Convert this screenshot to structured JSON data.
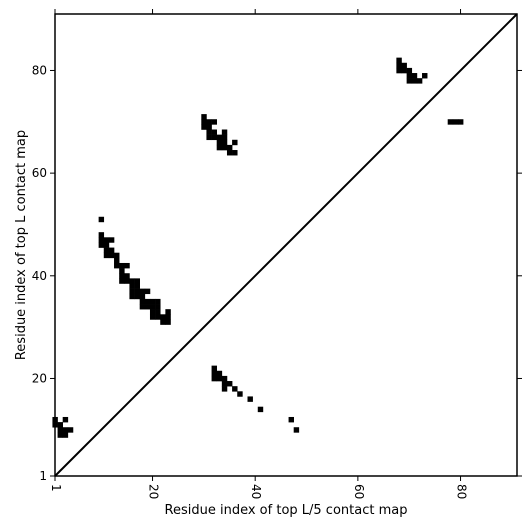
{
  "chart_data": {
    "type": "heatmap",
    "title": "",
    "xlabel": "Residue index of top L/5 contact map",
    "ylabel": "Residue index of top L contact map",
    "xlim": [
      1,
      91
    ],
    "ylim": [
      1,
      91
    ],
    "x_ticks": [
      1,
      20,
      40,
      60,
      80
    ],
    "y_ticks": [
      1,
      20,
      40,
      60,
      80
    ],
    "x_tick_labels": [
      "1",
      "20",
      "40",
      "60",
      "80"
    ],
    "y_tick_labels": [
      "1",
      "20",
      "40",
      "60",
      "80"
    ],
    "diagonal": true,
    "grid": false,
    "cell_color": "#000000",
    "upper_contacts": [
      [
        10,
        51
      ],
      [
        10,
        48
      ],
      [
        10,
        47
      ],
      [
        11,
        47
      ],
      [
        12,
        47
      ],
      [
        10,
        46
      ],
      [
        11,
        46
      ],
      [
        11,
        45
      ],
      [
        12,
        45
      ],
      [
        11,
        44
      ],
      [
        12,
        44
      ],
      [
        13,
        44
      ],
      [
        13,
        43
      ],
      [
        13,
        42
      ],
      [
        14,
        42
      ],
      [
        15,
        42
      ],
      [
        14,
        41
      ],
      [
        14,
        40
      ],
      [
        15,
        40
      ],
      [
        14,
        39
      ],
      [
        15,
        39
      ],
      [
        16,
        39
      ],
      [
        17,
        39
      ],
      [
        16,
        38
      ],
      [
        17,
        38
      ],
      [
        16,
        37
      ],
      [
        17,
        37
      ],
      [
        18,
        37
      ],
      [
        19,
        37
      ],
      [
        16,
        36
      ],
      [
        17,
        36
      ],
      [
        18,
        36
      ],
      [
        18,
        35
      ],
      [
        19,
        35
      ],
      [
        20,
        35
      ],
      [
        21,
        35
      ],
      [
        18,
        34
      ],
      [
        19,
        34
      ],
      [
        20,
        34
      ],
      [
        21,
        34
      ],
      [
        20,
        33
      ],
      [
        21,
        33
      ],
      [
        23,
        33
      ],
      [
        20,
        32
      ],
      [
        21,
        32
      ],
      [
        22,
        32
      ],
      [
        23,
        32
      ],
      [
        22,
        31
      ],
      [
        23,
        31
      ],
      [
        30,
        71
      ],
      [
        30,
        70
      ],
      [
        31,
        70
      ],
      [
        32,
        70
      ],
      [
        30,
        69
      ],
      [
        31,
        69
      ],
      [
        31,
        68
      ],
      [
        32,
        68
      ],
      [
        34,
        68
      ],
      [
        31,
        67
      ],
      [
        32,
        67
      ],
      [
        33,
        67
      ],
      [
        34,
        67
      ],
      [
        33,
        66
      ],
      [
        34,
        66
      ],
      [
        36,
        66
      ],
      [
        33,
        65
      ],
      [
        34,
        65
      ],
      [
        35,
        65
      ],
      [
        35,
        64
      ],
      [
        36,
        64
      ],
      [
        68,
        82
      ],
      [
        68,
        81
      ],
      [
        69,
        81
      ],
      [
        68,
        80
      ],
      [
        69,
        80
      ],
      [
        70,
        80
      ],
      [
        70,
        79
      ],
      [
        71,
        79
      ],
      [
        73,
        79
      ],
      [
        70,
        78
      ],
      [
        71,
        78
      ],
      [
        72,
        78
      ],
      [
        78,
        70
      ],
      [
        79,
        70
      ],
      [
        80,
        70
      ]
    ],
    "lower_contacts": [
      [
        1,
        12
      ],
      [
        3,
        12
      ],
      [
        1,
        11
      ],
      [
        2,
        11
      ],
      [
        2,
        10
      ],
      [
        3,
        10
      ],
      [
        4,
        10
      ],
      [
        2,
        9
      ],
      [
        3,
        9
      ],
      [
        32,
        22
      ],
      [
        32,
        21
      ],
      [
        33,
        21
      ],
      [
        32,
        20
      ],
      [
        33,
        20
      ],
      [
        34,
        20
      ],
      [
        34,
        19
      ],
      [
        35,
        19
      ],
      [
        34,
        18
      ],
      [
        36,
        18
      ],
      [
        37,
        17
      ],
      [
        39,
        16
      ],
      [
        41,
        14
      ],
      [
        47,
        12
      ],
      [
        48,
        10
      ]
    ]
  }
}
